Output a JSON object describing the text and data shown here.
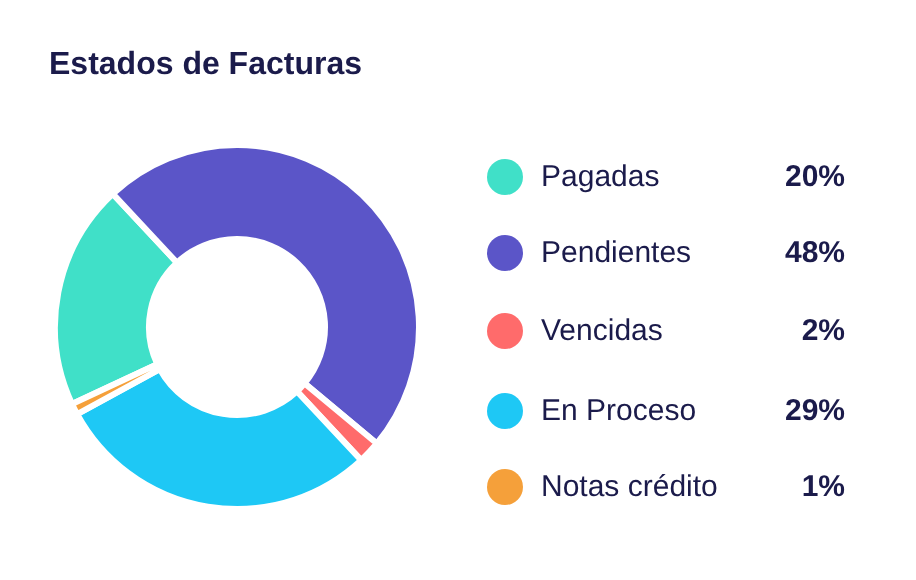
{
  "chart_data": {
    "type": "donut",
    "title": "Estados de Facturas",
    "categories": [
      "Pagadas",
      "Pendientes",
      "Vencidas",
      "En Proceso",
      "Notas crédito"
    ],
    "values": [
      20,
      48,
      2,
      29,
      1
    ],
    "value_labels": [
      "20%",
      "48%",
      "2%",
      "29%",
      "1%"
    ],
    "colors": [
      "#40e0c8",
      "#5b55c8",
      "#ff6b6b",
      "#1ec8f5",
      "#f5a03a"
    ],
    "legend": "right"
  }
}
